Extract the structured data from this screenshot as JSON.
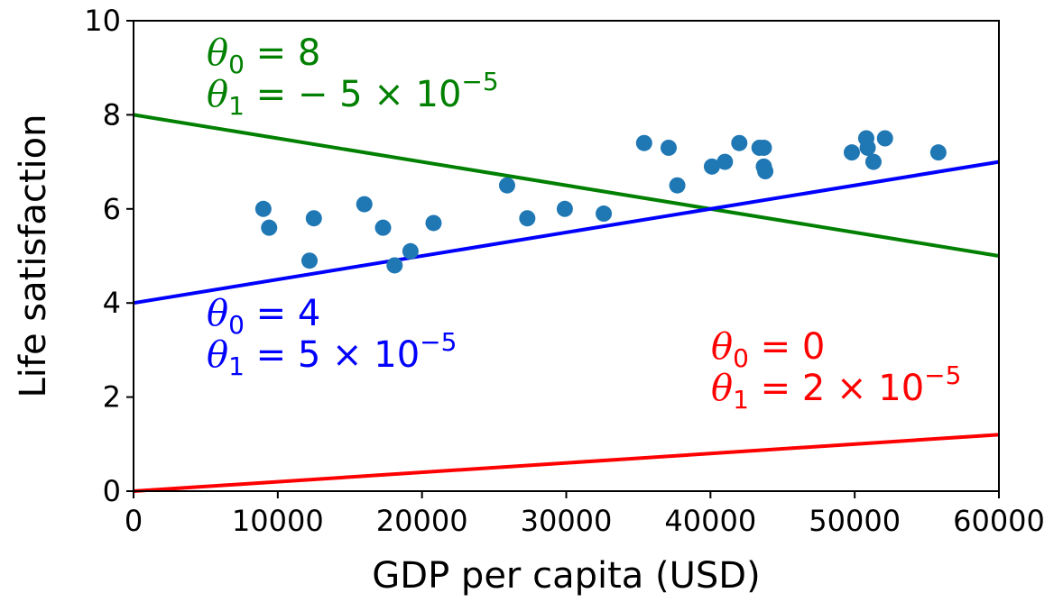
{
  "chart_data": {
    "type": "scatter",
    "title": "",
    "xlabel": "GDP per capita (USD)",
    "ylabel": "Life satisfaction",
    "xlim": [
      0,
      60000
    ],
    "ylim": [
      0,
      10
    ],
    "xticks": [
      0,
      10000,
      20000,
      30000,
      40000,
      50000,
      60000
    ],
    "xtick_labels": [
      "0",
      "10000",
      "20000",
      "30000",
      "40000",
      "50000",
      "60000"
    ],
    "yticks": [
      0,
      2,
      4,
      6,
      8,
      10
    ],
    "ytick_labels": [
      "0",
      "2",
      "4",
      "6",
      "8",
      "10"
    ],
    "grid": false,
    "legend": "none",
    "points": {
      "color": "#1f77b4",
      "values": [
        {
          "x": 9000,
          "y": 6.0
        },
        {
          "x": 9400,
          "y": 5.6
        },
        {
          "x": 12200,
          "y": 4.9
        },
        {
          "x": 12500,
          "y": 5.8
        },
        {
          "x": 16000,
          "y": 6.1
        },
        {
          "x": 17300,
          "y": 5.6
        },
        {
          "x": 18100,
          "y": 4.8
        },
        {
          "x": 19200,
          "y": 5.1
        },
        {
          "x": 20800,
          "y": 5.7
        },
        {
          "x": 25900,
          "y": 6.5
        },
        {
          "x": 27300,
          "y": 5.8
        },
        {
          "x": 29900,
          "y": 6.0
        },
        {
          "x": 32600,
          "y": 5.9
        },
        {
          "x": 35400,
          "y": 7.4
        },
        {
          "x": 37100,
          "y": 7.3
        },
        {
          "x": 37700,
          "y": 6.5
        },
        {
          "x": 40100,
          "y": 6.9
        },
        {
          "x": 41000,
          "y": 7.0
        },
        {
          "x": 42000,
          "y": 7.4
        },
        {
          "x": 43400,
          "y": 7.3
        },
        {
          "x": 43700,
          "y": 7.3
        },
        {
          "x": 43700,
          "y": 6.9
        },
        {
          "x": 43800,
          "y": 6.8
        },
        {
          "x": 49800,
          "y": 7.2
        },
        {
          "x": 50800,
          "y": 7.5
        },
        {
          "x": 50900,
          "y": 7.3
        },
        {
          "x": 51300,
          "y": 7.0
        },
        {
          "x": 52100,
          "y": 7.5
        },
        {
          "x": 55800,
          "y": 7.2
        }
      ]
    },
    "lines": [
      {
        "color": "#ff0000",
        "theta0": 0,
        "theta1": 2e-05,
        "label_lines": [
          {
            "parts": [
              {
                "t": "θ",
                "sym": true
              },
              {
                "t": "0",
                "sub": true
              },
              {
                "t": " = 0"
              }
            ]
          },
          {
            "parts": [
              {
                "t": "θ",
                "sym": true
              },
              {
                "t": "1",
                "sub": true
              },
              {
                "t": " = 2 × 10"
              },
              {
                "t": "−5",
                "sup": true
              }
            ]
          }
        ]
      },
      {
        "color": "#008000",
        "theta0": 8,
        "theta1": -5e-05,
        "label_lines": [
          {
            "parts": [
              {
                "t": "θ",
                "sym": true
              },
              {
                "t": "0",
                "sub": true
              },
              {
                "t": " = 8"
              }
            ]
          },
          {
            "parts": [
              {
                "t": "θ",
                "sym": true
              },
              {
                "t": "1",
                "sub": true
              },
              {
                "t": " = − 5 × 10"
              },
              {
                "t": "−5",
                "sup": true
              }
            ]
          }
        ]
      },
      {
        "color": "#0000ff",
        "theta0": 4,
        "theta1": 5e-05,
        "label_lines": [
          {
            "parts": [
              {
                "t": "θ",
                "sym": true
              },
              {
                "t": "0",
                "sub": true
              },
              {
                "t": " = 4"
              }
            ]
          },
          {
            "parts": [
              {
                "t": "θ",
                "sym": true
              },
              {
                "t": "1",
                "sub": true
              },
              {
                "t": " = 5 × 10"
              },
              {
                "t": "−5",
                "sup": true
              }
            ]
          }
        ]
      }
    ]
  }
}
